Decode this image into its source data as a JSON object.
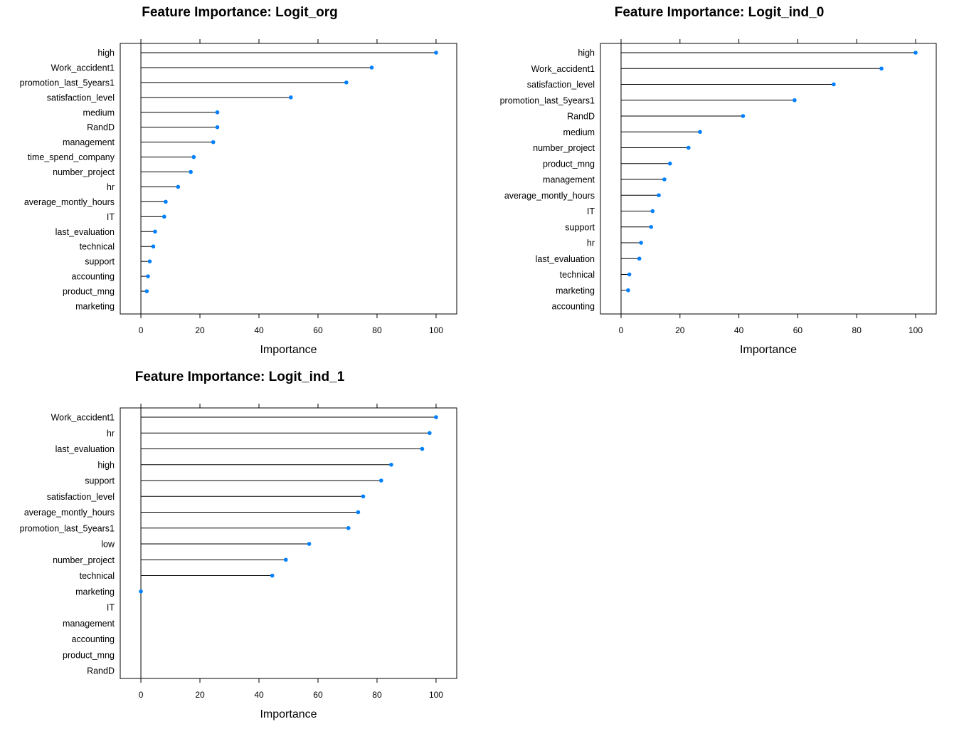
{
  "chart_data": [
    {
      "type": "dot",
      "title": "Feature Importance: Logit_org",
      "xlabel": "Importance",
      "ylabel": "",
      "xlim": [
        -7,
        107
      ],
      "xticks": [
        0,
        20,
        40,
        60,
        80,
        100
      ],
      "grid": false,
      "legend": "none",
      "series_color": "#0080ff",
      "categories": [
        "high",
        "Work_accident1",
        "promotion_last_5years1",
        "satisfaction_level",
        "medium",
        "RandD",
        "management",
        "time_spend_company",
        "number_project",
        "hr",
        "average_montly_hours",
        "IT",
        "last_evaluation",
        "technical",
        "support",
        "accounting",
        "product_mng",
        "marketing"
      ],
      "values": [
        100,
        78.2,
        69.6,
        50.8,
        25.9,
        25.9,
        24.5,
        17.9,
        16.9,
        12.6,
        8.4,
        7.9,
        4.8,
        4.2,
        3.0,
        2.4,
        2.0,
        0
      ]
    },
    {
      "type": "dot",
      "title": "Feature Importance: Logit_ind_0",
      "xlabel": "Importance",
      "ylabel": "",
      "xlim": [
        -7,
        107
      ],
      "xticks": [
        0,
        20,
        40,
        60,
        80,
        100
      ],
      "grid": false,
      "legend": "none",
      "series_color": "#0080ff",
      "categories": [
        "high",
        "Work_accident1",
        "satisfaction_level",
        "promotion_last_5years1",
        "RandD",
        "medium",
        "number_project",
        "product_mng",
        "management",
        "average_montly_hours",
        "IT",
        "support",
        "hr",
        "last_evaluation",
        "technical",
        "marketing",
        "accounting"
      ],
      "values": [
        100,
        88.4,
        72.2,
        58.9,
        41.4,
        26.8,
        22.9,
        16.6,
        14.7,
        12.8,
        10.7,
        10.2,
        6.8,
        6.2,
        2.8,
        2.4,
        0
      ]
    },
    {
      "type": "dot",
      "title": "Feature Importance: Logit_ind_1",
      "xlabel": "Importance",
      "ylabel": "",
      "xlim": [
        -7,
        107
      ],
      "xticks": [
        0,
        20,
        40,
        60,
        80,
        100
      ],
      "grid": false,
      "legend": "none",
      "series_color": "#0080ff",
      "categories": [
        "Work_accident1",
        "hr",
        "last_evaluation",
        "high",
        "support",
        "satisfaction_level",
        "average_montly_hours",
        "promotion_last_5years1",
        "low",
        "number_project",
        "technical",
        "marketing",
        "IT",
        "management",
        "accounting",
        "product_mng",
        "RandD"
      ],
      "values": [
        100,
        97.8,
        95.3,
        84.8,
        81.4,
        75.3,
        73.6,
        70.3,
        57.0,
        49.1,
        44.5,
        0,
        0,
        0,
        0,
        0,
        0
      ]
    }
  ]
}
